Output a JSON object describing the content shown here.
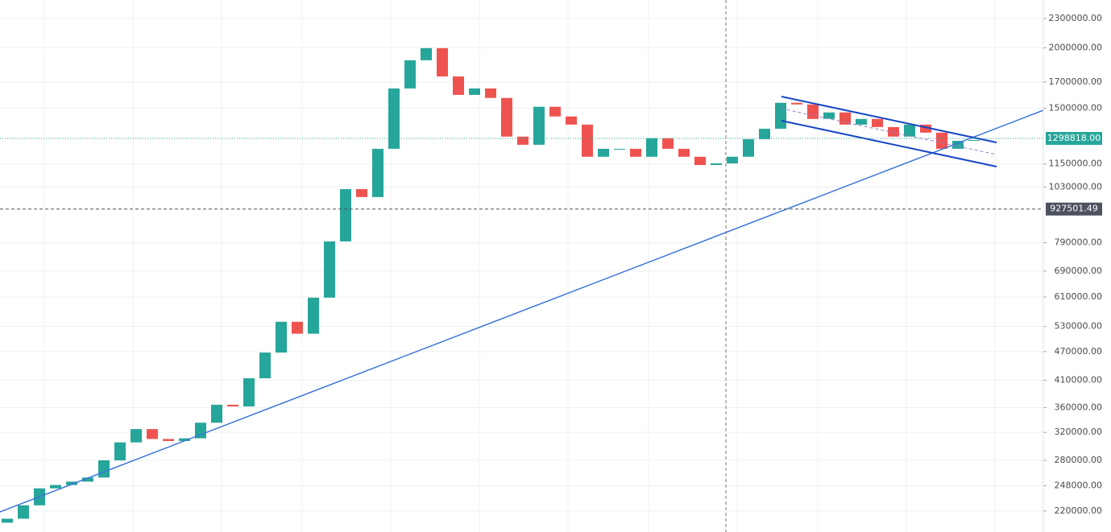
{
  "chart_data": {
    "type": "candlestick",
    "log_scale": true,
    "grid": true,
    "up_color": "#26a69a",
    "down_color": "#ef5350",
    "open": [
      208000,
      212000,
      226000,
      245000,
      249000,
      253000,
      258000,
      280000,
      305000,
      325000,
      310000,
      307000,
      311000,
      335000,
      365000,
      362000,
      414000,
      468000,
      542000,
      512000,
      608000,
      795000,
      1020000,
      982000,
      1236000,
      1648000,
      1885000,
      1997000,
      1745000,
      1598000,
      1648000,
      1575000,
      1310000,
      1260000,
      1510000,
      1442000,
      1387000,
      1190000,
      1236000,
      1236000,
      1190000,
      1300000,
      1236000,
      1190000,
      1144000,
      1153000,
      1190000,
      1294000,
      1360000,
      1539000,
      1527000,
      1425000,
      1470000,
      1387000,
      1425000,
      1371000,
      1310000,
      1387000,
      1335000,
      1236000,
      1284000
    ],
    "close": [
      212000,
      226000,
      245000,
      249000,
      253000,
      258000,
      280000,
      305000,
      325000,
      310000,
      307000,
      311000,
      335000,
      365000,
      362000,
      414000,
      468000,
      542000,
      512000,
      608000,
      795000,
      1020000,
      982000,
      1236000,
      1648000,
      1885000,
      1997000,
      1745000,
      1598000,
      1648000,
      1575000,
      1310000,
      1260000,
      1510000,
      1442000,
      1387000,
      1190000,
      1236000,
      1236000,
      1190000,
      1300000,
      1236000,
      1190000,
      1144000,
      1153000,
      1190000,
      1294000,
      1360000,
      1539000,
      1527000,
      1425000,
      1470000,
      1387000,
      1425000,
      1371000,
      1310000,
      1387000,
      1335000,
      1236000,
      1284000,
      1289000
    ],
    "ylim": [
      199000,
      2512000
    ],
    "yticks": [
      {
        "value": 2300000,
        "label": "2300000.00"
      },
      {
        "value": 2000000,
        "label": "2000000.00"
      },
      {
        "value": 1700000,
        "label": "1700000.00"
      },
      {
        "value": 1500000,
        "label": "1500000.00"
      },
      {
        "value": 1150000,
        "label": "1150000.00"
      },
      {
        "value": 1030000,
        "label": "1030000.00"
      },
      {
        "value": 790000,
        "label": "790000.00"
      },
      {
        "value": 690000,
        "label": "690000.00"
      },
      {
        "value": 610000,
        "label": "610000.00"
      },
      {
        "value": 530000,
        "label": "530000.00"
      },
      {
        "value": 470000,
        "label": "470000.00"
      },
      {
        "value": 410000,
        "label": "410000.00"
      },
      {
        "value": 360000,
        "label": "360000.00"
      },
      {
        "value": 320000,
        "label": "320000.00"
      },
      {
        "value": 280000,
        "label": "280000.00"
      },
      {
        "value": 248000,
        "label": "248000.00"
      },
      {
        "value": 220000,
        "label": "220000.00"
      }
    ],
    "price_line": {
      "value": 1298818,
      "label": "1298818.00",
      "color": "#26a69a"
    },
    "crosshair": {
      "value": 927501.49,
      "label": "927501.49",
      "color": "#4c525e"
    }
  }
}
